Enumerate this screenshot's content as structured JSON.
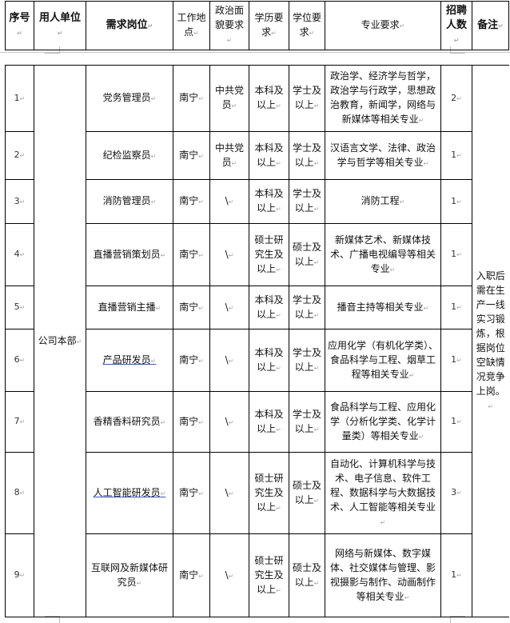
{
  "header": {
    "seq": "序号",
    "unit": "用人单位",
    "position": "需求岗位",
    "location": "工作地点",
    "political": "政治面貌要求",
    "education": "学历要求",
    "degree": "学位要求",
    "major": "专业要求",
    "count": "招聘人数",
    "remark": "备注"
  },
  "unit": "公司本部",
  "remark": "入职后需在生产一线实习锻炼，根据岗位空缺情况竞争上岗。",
  "rows": [
    {
      "seq": "1",
      "position": "党务管理员",
      "location": "南宁",
      "political": "中共党员",
      "education": "本科及以上",
      "degree": "学士及以上",
      "major": "政治学、经济学与哲学，政治学与行政学，思想政治教育，新闻学，网络与新媒体等相关专业",
      "count": "2"
    },
    {
      "seq": "2",
      "position": "纪检监察员",
      "location": "南宁",
      "political": "中共党员",
      "education": "本科及以上",
      "degree": "学士及以上",
      "major": "汉语言文学、法律、政治学与哲学等相关专业",
      "count": "1"
    },
    {
      "seq": "3",
      "position": "消防管理员",
      "location": "南宁",
      "political": "\\",
      "education": "本科及以上",
      "degree": "学士及以上",
      "major": "消防工程",
      "count": "1"
    },
    {
      "seq": "4",
      "position": "直播营销策划员",
      "location": "南宁",
      "political": "\\",
      "education": "硕士研究生及以上",
      "degree": "硕士及以上",
      "major": "新媒体艺术、新媒体技术、广播电视编导等相关专业",
      "count": "1"
    },
    {
      "seq": "5",
      "position": "直播营销主播",
      "location": "南宁",
      "political": "\\",
      "education": "本科及以上",
      "degree": "学士及以上",
      "major": "播音主持等相关专业",
      "count": "1"
    },
    {
      "seq": "6",
      "position": "产品研发员",
      "location": "南宁",
      "political": "\\",
      "education": "本科及以上",
      "degree": "学士及以上",
      "major": "应用化学（有机化学类）、食品科学与工程、烟草工程等相关专业",
      "count": "1"
    },
    {
      "seq": "7",
      "position": "香精香料研究员",
      "location": "南宁",
      "political": "\\",
      "education": "本科及以上",
      "degree": "学士及以上",
      "major": "食品科学与工程、应用化学（分析化学类、化学计量类）等相关专业",
      "count": "1"
    },
    {
      "seq": "8",
      "position": "人工智能研发员",
      "location": "南宁",
      "political": "\\",
      "education": "硕士研究生及以上",
      "degree": "硕士及以上",
      "major": "自动化、计算机科学与技术、电子信息、软件工程、数据科学与大数据技术、人工智能等相关专业",
      "count": "3"
    },
    {
      "seq": "9",
      "position": "互联网及新媒体研究员",
      "location": "南宁",
      "political": "\\",
      "education": "硕士研究生及以上",
      "degree": "硕士及以上",
      "major": "网络与新媒体、数字媒体、社交媒体与管理、影视摄影与制作、动画制作等相关专业",
      "count": "1"
    }
  ]
}
